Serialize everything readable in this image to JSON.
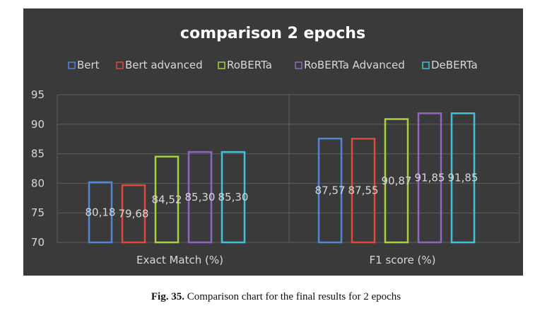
{
  "chart_data": {
    "type": "bar",
    "title": "comparison 2 epochs",
    "categories": [
      "Exact Match (%)",
      "F1 score (%)"
    ],
    "series": [
      {
        "name": "Bert",
        "color": "#4f86d6",
        "values": [
          80.18,
          87.57
        ],
        "labels": [
          "80,18",
          "87,57"
        ]
      },
      {
        "name": "Bert advanced",
        "color": "#e0473d",
        "values": [
          79.68,
          87.55
        ],
        "labels": [
          "79,68",
          "87,55"
        ]
      },
      {
        "name": "RoBERTa",
        "color": "#a9cf45",
        "values": [
          84.52,
          90.87
        ],
        "labels": [
          "84,52",
          "90,87"
        ]
      },
      {
        "name": "RoBERTa Advanced",
        "color": "#8d67bf",
        "values": [
          85.3,
          91.85
        ],
        "labels": [
          "85,30",
          "91,85"
        ]
      },
      {
        "name": "DeBERTa",
        "color": "#3ec3d8",
        "values": [
          85.3,
          91.85
        ],
        "labels": [
          "85,30",
          "91,85"
        ]
      }
    ],
    "ylim": [
      70,
      95
    ],
    "yticks": [
      "70",
      "75",
      "80",
      "85",
      "90",
      "95"
    ],
    "grid": true,
    "legend": "top"
  },
  "caption": {
    "label": "Fig. 35.",
    "text": " Comparison chart for the final results for 2 epochs"
  }
}
